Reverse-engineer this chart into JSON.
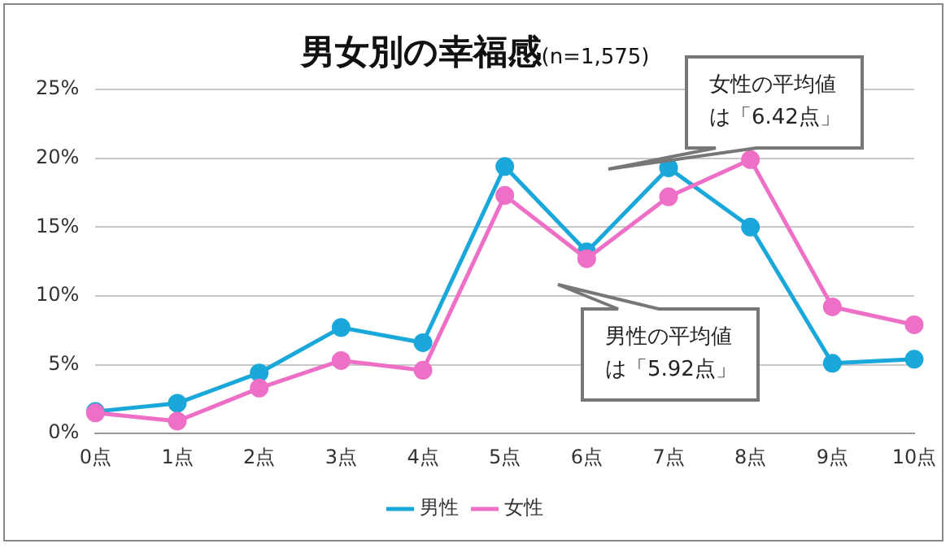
{
  "chart_data": {
    "type": "line",
    "title": "男女別の幸福感",
    "subtitle": "(n=1,575)",
    "categories": [
      "0点",
      "1点",
      "2点",
      "3点",
      "4点",
      "5点",
      "6点",
      "7点",
      "8点",
      "9点",
      "10点"
    ],
    "series": [
      {
        "name": "男性",
        "color": "#1aa7d9",
        "values": [
          1.6,
          2.2,
          4.4,
          7.7,
          6.6,
          19.4,
          13.2,
          19.3,
          15.0,
          5.1,
          5.4
        ]
      },
      {
        "name": "女性",
        "color": "#ee6fc6",
        "values": [
          1.5,
          0.9,
          3.3,
          5.3,
          4.6,
          17.3,
          12.7,
          17.2,
          19.9,
          9.2,
          7.9
        ]
      }
    ],
    "ylim": [
      0,
      25
    ],
    "yticks": [
      {
        "value": 0,
        "label": "0%"
      },
      {
        "value": 5,
        "label": "5%"
      },
      {
        "value": 10,
        "label": "10%"
      },
      {
        "value": 15,
        "label": "15%"
      },
      {
        "value": 20,
        "label": "20%"
      },
      {
        "value": 25,
        "label": "25%"
      }
    ],
    "grid": "y",
    "legend": "bottom",
    "marker": "circle",
    "line_style": "solid",
    "annotations": [
      "女性の平均値は「6.42点」",
      "男性の平均値は「5.92点」"
    ]
  }
}
